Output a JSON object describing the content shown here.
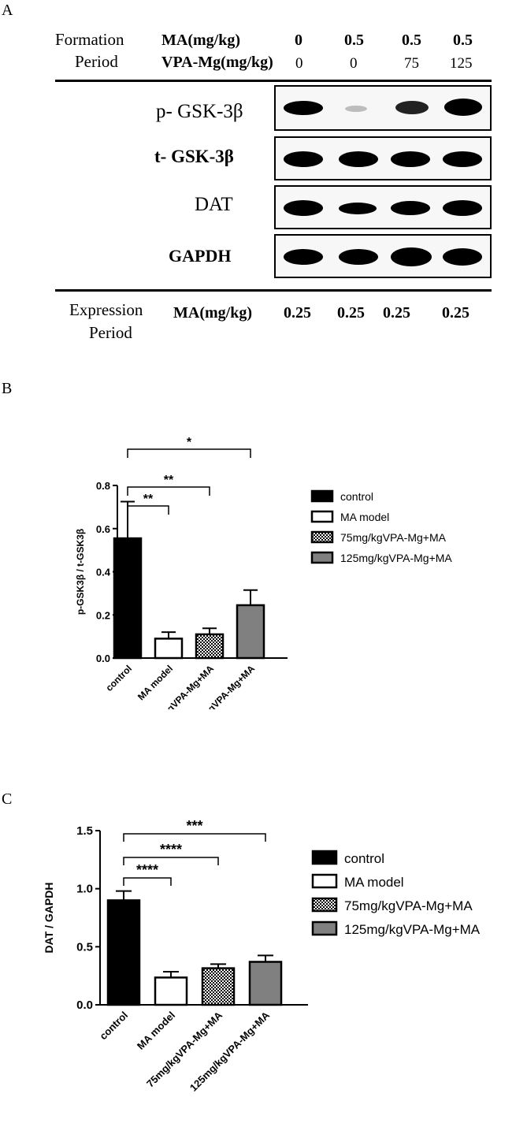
{
  "panel_a": {
    "letter": "A",
    "formation_label_1": "Formation",
    "formation_label_2": "Period",
    "ma_label": "MA(mg/kg)",
    "vpa_label": "VPA-Mg(mg/kg)",
    "ma_values": [
      "0",
      "0.5",
      "0.5",
      "0.5"
    ],
    "vpa_values": [
      "0",
      "0",
      "75",
      "125"
    ],
    "rows": [
      {
        "label": "p- GSK-3β",
        "band_intensity": [
          1.0,
          0.2,
          0.75,
          0.95
        ]
      },
      {
        "label": "t- GSK-3β",
        "band_intensity": [
          1.0,
          1.0,
          1.0,
          1.0
        ]
      },
      {
        "label": "DAT",
        "band_intensity": [
          1.0,
          0.85,
          0.95,
          1.0
        ]
      },
      {
        "label": "GAPDH",
        "band_intensity": [
          1.0,
          1.0,
          1.0,
          1.0
        ]
      }
    ],
    "expression_label_1": "Expression",
    "expression_label_2": "Period",
    "exp_ma_label": "MA(mg/kg)",
    "exp_ma_values": [
      "0.25",
      "0.25",
      "0.25",
      "0.25"
    ]
  },
  "chart_data": [
    {
      "panel": "B",
      "type": "bar",
      "categories": [
        "control",
        "MA model",
        "75mg/kgVPA-Mg+MA",
        "125mg/kgVPA-Mg+MA"
      ],
      "values": [
        0.555,
        0.09,
        0.11,
        0.245
      ],
      "errors": [
        0.17,
        0.03,
        0.028,
        0.07
      ],
      "fills": [
        "solid-black",
        "white",
        "checker",
        "gray"
      ],
      "ylabel": "p-GSK3β / t-GSK3β",
      "xlabel": "",
      "ylim": [
        0,
        0.8
      ],
      "yticks": [
        "0.0",
        "0.2",
        "0.4",
        "0.6",
        "0.8"
      ],
      "significance": [
        {
          "from": 0,
          "to": 1,
          "label": "**"
        },
        {
          "from": 0,
          "to": 2,
          "label": "**"
        },
        {
          "from": 0,
          "to": 3,
          "label": "*"
        }
      ],
      "legend": [
        "control",
        "MA model",
        "75mg/kgVPA-Mg+MA",
        "125mg/kgVPA-Mg+MA"
      ],
      "legend_position": "right"
    },
    {
      "panel": "C",
      "type": "bar",
      "categories": [
        "control",
        "MA model",
        "75mg/kgVPA-Mg+MA",
        "125mg/kgVPA-Mg+MA"
      ],
      "values": [
        0.9,
        0.235,
        0.315,
        0.37
      ],
      "errors": [
        0.08,
        0.05,
        0.035,
        0.055
      ],
      "fills": [
        "solid-black",
        "white",
        "checker",
        "gray"
      ],
      "ylabel": "DAT / GAPDH",
      "xlabel": "",
      "ylim": [
        0,
        1.5
      ],
      "yticks": [
        "0.0",
        "0.5",
        "1.0",
        "1.5"
      ],
      "significance": [
        {
          "from": 0,
          "to": 1,
          "label": "****"
        },
        {
          "from": 0,
          "to": 2,
          "label": "****"
        },
        {
          "from": 0,
          "to": 3,
          "label": "***"
        }
      ],
      "legend": [
        "control",
        "MA model",
        "75mg/kgVPA-Mg+MA",
        "125mg/kgVPA-Mg+MA"
      ],
      "legend_position": "right"
    }
  ]
}
